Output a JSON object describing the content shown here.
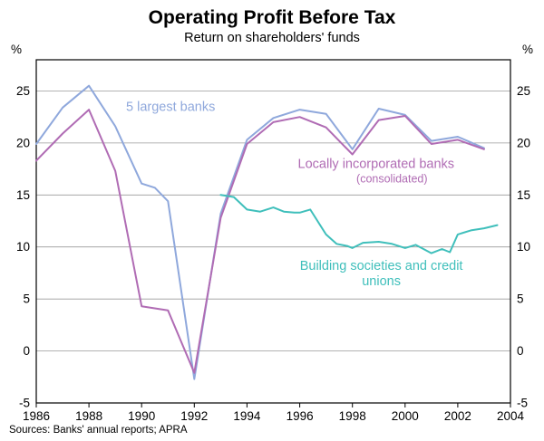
{
  "chart_data": {
    "type": "line",
    "title": "Operating Profit Before Tax",
    "subtitle": "Return on shareholders' funds",
    "unit_left": "%",
    "unit_right": "%",
    "xlim": [
      1986,
      2004
    ],
    "ylim": [
      -5,
      28
    ],
    "yticks": [
      -5,
      0,
      5,
      10,
      15,
      20,
      25
    ],
    "xticks": [
      1986,
      1988,
      1990,
      1992,
      1994,
      1996,
      1998,
      2000,
      2002,
      2004
    ],
    "grid": true,
    "legend_position": "none",
    "source": "Sources: Banks' annual reports; APRA",
    "series": [
      {
        "name": "5 largest banks",
        "color": "#8fa8dc",
        "x": [
          1986,
          1987,
          1988,
          1989,
          1990,
          1990.5,
          1991,
          1992,
          1993,
          1994,
          1995,
          1996,
          1997,
          1998,
          1999,
          2000,
          2001,
          2002,
          2003
        ],
        "values": [
          19.9,
          23.4,
          25.5,
          21.6,
          16.1,
          15.7,
          14.4,
          -2.7,
          13.2,
          20.3,
          22.4,
          23.2,
          22.8,
          19.4,
          23.3,
          22.7,
          20.2,
          20.6,
          19.5
        ]
      },
      {
        "name": "Locally incorporated banks (consolidated)",
        "color": "#b06cb4",
        "x": [
          1986,
          1987,
          1988,
          1989,
          1990,
          1991,
          1992,
          1993,
          1994,
          1995,
          1996,
          1997,
          1998,
          1999,
          2000,
          2001,
          2002,
          2003
        ],
        "values": [
          18.3,
          20.9,
          23.2,
          17.3,
          4.3,
          3.9,
          -2.1,
          12.8,
          19.9,
          22.0,
          22.5,
          21.5,
          18.9,
          22.2,
          22.6,
          19.9,
          20.3,
          19.4
        ]
      },
      {
        "name": "Building societies and credit unions",
        "color": "#3fbfbb",
        "x": [
          1993,
          1993.5,
          1994,
          1994.5,
          1995,
          1995.4,
          1995.8,
          1996,
          1996.4,
          1997,
          1997.4,
          1997.8,
          1998,
          1998.4,
          1999,
          1999.5,
          2000,
          2000.4,
          2001,
          2001.4,
          2001.7,
          2002,
          2002.5,
          2003,
          2003.5
        ],
        "values": [
          15.0,
          14.8,
          13.6,
          13.4,
          13.8,
          13.4,
          13.3,
          13.3,
          13.6,
          11.2,
          10.3,
          10.1,
          9.9,
          10.4,
          10.5,
          10.3,
          9.9,
          10.2,
          9.4,
          9.8,
          9.5,
          11.2,
          11.6,
          11.8,
          12.1
        ]
      }
    ],
    "annotations": [
      {
        "text": "5 largest banks",
        "x": 1991.1,
        "y": 23.1,
        "color": "#8fa8dc",
        "size": 14.5
      },
      {
        "text": "Locally incorporated banks",
        "x": 1998.9,
        "y": 17.6,
        "color": "#b06cb4",
        "size": 14.5
      },
      {
        "text": "(consolidated)",
        "x": 1999.5,
        "y": 16.2,
        "color": "#b06cb4",
        "size": 12.5
      },
      {
        "text": "Building societies and credit",
        "x": 1999.1,
        "y": 7.8,
        "color": "#3fbfbb",
        "size": 14.5
      },
      {
        "text": "unions",
        "x": 1999.1,
        "y": 6.3,
        "color": "#3fbfbb",
        "size": 14.5
      }
    ]
  }
}
